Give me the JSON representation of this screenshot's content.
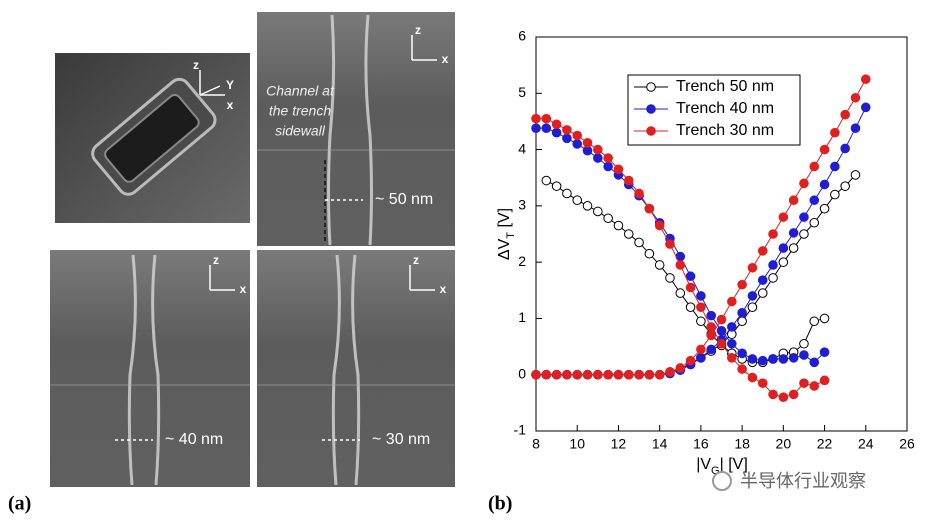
{
  "panel_a": {
    "label": "(a)",
    "images": [
      {
        "axes": [
          "z",
          "Y",
          "x"
        ]
      },
      {
        "axes": [
          "z",
          "x"
        ],
        "annotation": [
          "Channel at",
          "the trench",
          "sidewall"
        ],
        "width": "~ 50 nm"
      },
      {
        "axes": [
          "z",
          "x"
        ],
        "width": "~ 40 nm"
      },
      {
        "axes": [
          "z",
          "x"
        ],
        "width": "~ 30 nm"
      }
    ]
  },
  "chart_data": {
    "type": "line",
    "label": "(b)",
    "x_label": {
      "main": "|V",
      "sub": "G",
      "unit": "| [V]"
    },
    "y_label": {
      "main": "ΔV",
      "sub": "T",
      "unit": " [V]"
    },
    "xlim": [
      8,
      26
    ],
    "xticks": [
      8,
      10,
      12,
      14,
      16,
      18,
      20,
      22,
      24,
      26
    ],
    "ylim": [
      -1,
      6
    ],
    "yticks": [
      -1,
      0,
      1,
      2,
      3,
      4,
      5,
      6
    ],
    "legend": "upper center",
    "series": [
      {
        "name": "Trench 50 nm",
        "color": "#000000",
        "marker": "open",
        "curves": [
          {
            "x": [
              8.5,
              9,
              9.5,
              10,
              10.5,
              11,
              11.5,
              12,
              12.5,
              13,
              13.5,
              14,
              14.5,
              15,
              15.5,
              16,
              16.5,
              17,
              17.5,
              18,
              18.5,
              19,
              19.5,
              20,
              20.5,
              21,
              21.5,
              22
            ],
            "values": [
              3.45,
              3.35,
              3.22,
              3.1,
              3.0,
              2.9,
              2.78,
              2.65,
              2.5,
              2.35,
              2.15,
              1.95,
              1.72,
              1.45,
              1.2,
              0.95,
              0.72,
              0.52,
              0.38,
              0.28,
              0.22,
              0.22,
              0.28,
              0.38,
              0.4,
              0.55,
              0.95,
              1.0
            ]
          },
          {
            "x": [
              8,
              8.5,
              9,
              9.5,
              10,
              10.5,
              11,
              11.5,
              12,
              12.5,
              13,
              13.5,
              14,
              14.5,
              15,
              15.5,
              16,
              16.5,
              17,
              17.5,
              18,
              18.5,
              19,
              19.5,
              20,
              20.5,
              21,
              21.5,
              22,
              22.5,
              23,
              23.5
            ],
            "values": [
              0,
              0,
              0,
              0,
              0,
              0,
              0,
              0,
              0,
              0,
              0,
              0,
              0,
              0.05,
              0.1,
              0.2,
              0.3,
              0.42,
              0.55,
              0.72,
              0.95,
              1.2,
              1.45,
              1.72,
              2.0,
              2.25,
              2.5,
              2.7,
              2.95,
              3.2,
              3.35,
              3.55
            ]
          }
        ]
      },
      {
        "name": "Trench 40 nm",
        "color": "#1f1fd0",
        "marker": "filled",
        "curves": [
          {
            "x": [
              8,
              8.5,
              9,
              9.5,
              10,
              10.5,
              11,
              11.5,
              12,
              12.5,
              13,
              13.5,
              14,
              14.5,
              15,
              15.5,
              16,
              16.5,
              17,
              17.5,
              18,
              18.5,
              19,
              19.5,
              20,
              20.5,
              21,
              21.5,
              22
            ],
            "values": [
              4.38,
              4.38,
              4.3,
              4.2,
              4.1,
              3.98,
              3.85,
              3.7,
              3.55,
              3.38,
              3.18,
              2.95,
              2.7,
              2.42,
              2.1,
              1.75,
              1.4,
              1.05,
              0.78,
              0.55,
              0.38,
              0.28,
              0.25,
              0.28,
              0.28,
              0.3,
              0.35,
              0.22,
              0.4
            ]
          },
          {
            "x": [
              8,
              8.5,
              9,
              9.5,
              10,
              10.5,
              11,
              11.5,
              12,
              12.5,
              13,
              13.5,
              14,
              14.5,
              15,
              15.5,
              16,
              16.5,
              17,
              17.5,
              18,
              18.5,
              19,
              19.5,
              20,
              20.5,
              21,
              21.5,
              22,
              22.5,
              23,
              23.5,
              24
            ],
            "values": [
              0,
              0,
              0,
              0,
              0,
              0,
              0,
              0,
              0,
              0,
              0,
              0,
              0,
              0.02,
              0.08,
              0.18,
              0.3,
              0.45,
              0.62,
              0.85,
              1.1,
              1.4,
              1.68,
              1.95,
              2.25,
              2.52,
              2.8,
              3.1,
              3.38,
              3.7,
              4.02,
              4.38,
              4.75
            ]
          }
        ]
      },
      {
        "name": "Trench 30 nm",
        "color": "#e02020",
        "marker": "filled",
        "curves": [
          {
            "x": [
              8,
              8.5,
              9,
              9.5,
              10,
              10.5,
              11,
              11.5,
              12,
              12.5,
              13,
              13.5,
              14,
              14.5,
              15,
              15.5,
              16,
              16.5,
              17,
              17.5,
              18,
              18.5,
              19,
              19.5,
              20,
              20.5,
              21,
              21.5,
              22
            ],
            "values": [
              4.55,
              4.55,
              4.45,
              4.35,
              4.25,
              4.12,
              4.0,
              3.85,
              3.65,
              3.45,
              3.22,
              2.95,
              2.65,
              2.32,
              1.95,
              1.55,
              1.2,
              0.85,
              0.55,
              0.3,
              0.1,
              -0.05,
              -0.15,
              -0.35,
              -0.4,
              -0.35,
              -0.15,
              -0.2,
              -0.1
            ]
          },
          {
            "x": [
              8,
              8.5,
              9,
              9.5,
              10,
              10.5,
              11,
              11.5,
              12,
              12.5,
              13,
              13.5,
              14,
              14.5,
              15,
              15.5,
              16,
              16.5,
              17,
              17.5,
              18,
              18.5,
              19,
              19.5,
              20,
              20.5,
              21,
              21.5,
              22,
              22.5,
              23,
              23.5,
              24
            ],
            "values": [
              0,
              0,
              0,
              0,
              0,
              0,
              0,
              0,
              0,
              0,
              0,
              0,
              0,
              0.05,
              0.12,
              0.25,
              0.45,
              0.7,
              0.98,
              1.3,
              1.6,
              1.9,
              2.2,
              2.5,
              2.8,
              3.1,
              3.4,
              3.7,
              4.0,
              4.3,
              4.62,
              4.92,
              5.25
            ]
          }
        ]
      }
    ]
  },
  "watermark": "半导体行业观察"
}
